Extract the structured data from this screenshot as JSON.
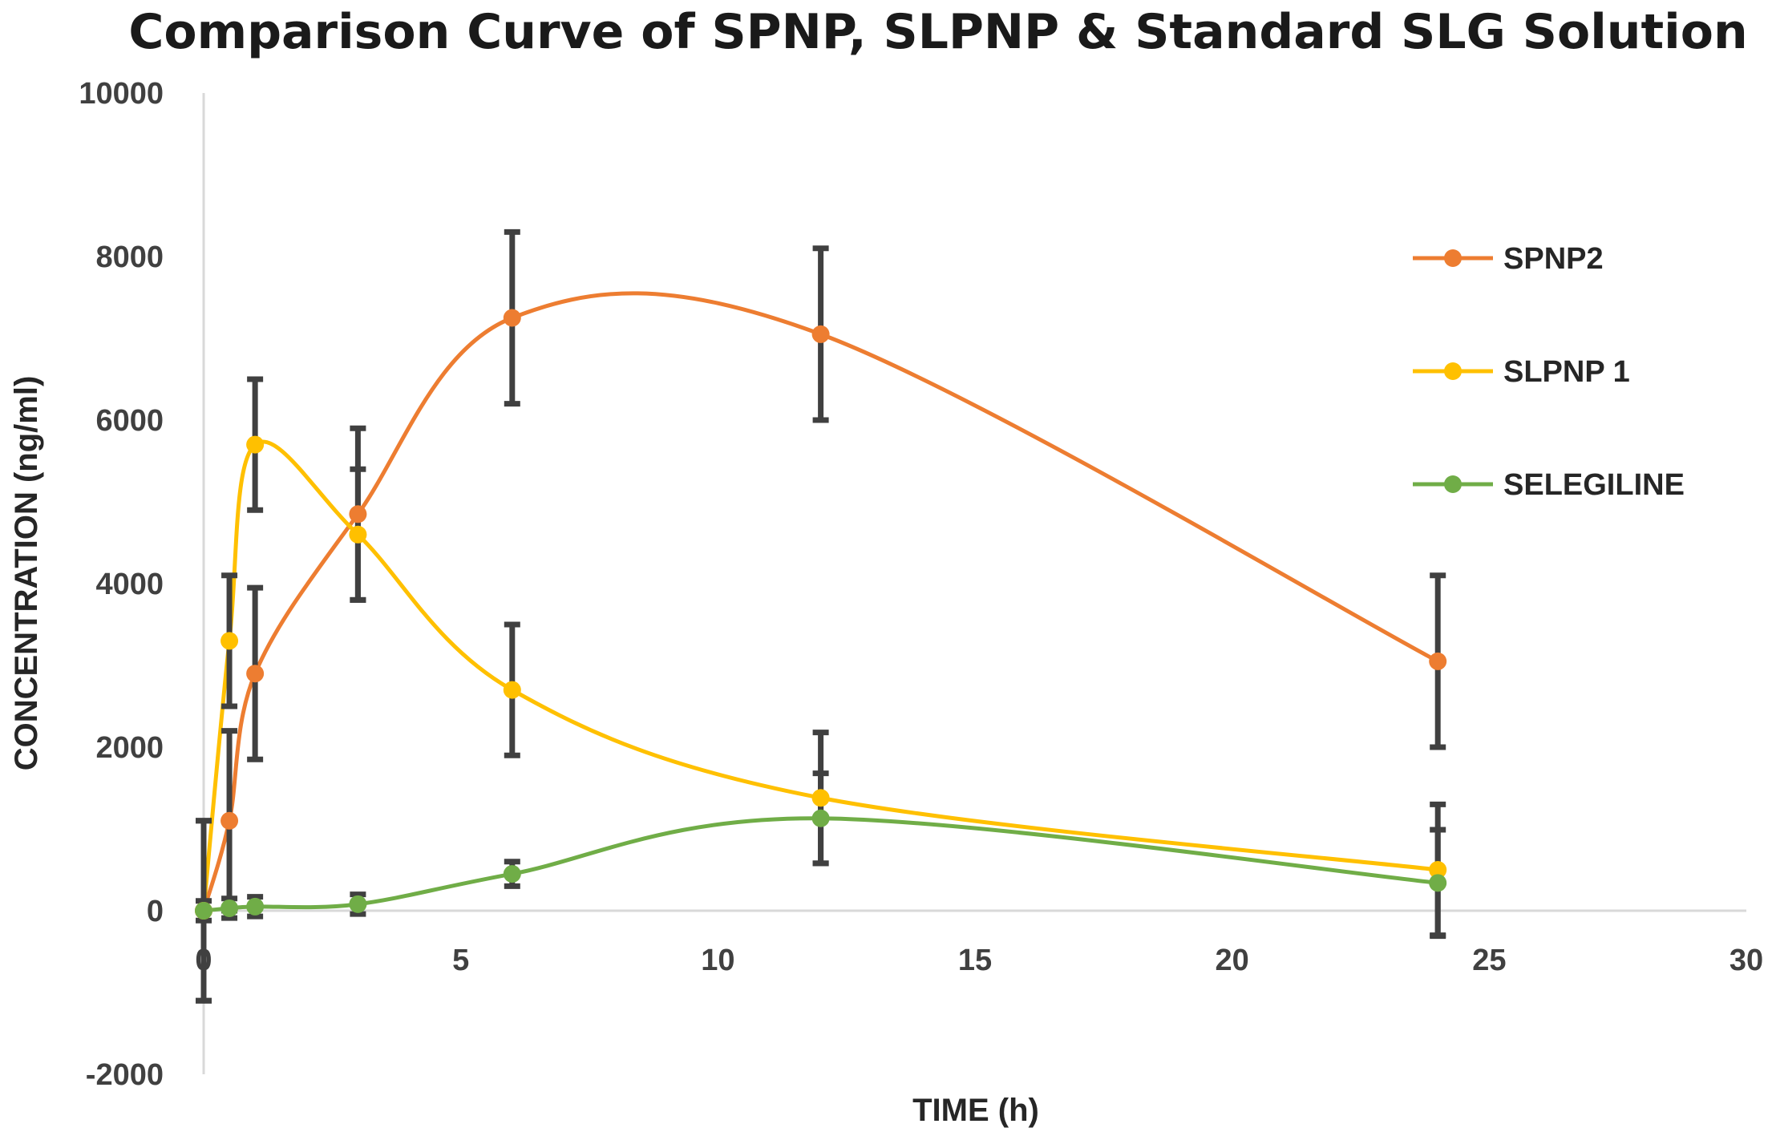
{
  "chart_data": {
    "type": "line",
    "title": "Comparison Curve of SPNP, SLPNP & Standard SLG Solution",
    "xlabel": "TIME  (h)",
    "ylabel": "CONCENTRATION  (ng/ml)",
    "xlim": [
      0,
      30
    ],
    "ylim": [
      -2000,
      10000
    ],
    "x_ticks": [
      0,
      5,
      10,
      15,
      20,
      25,
      30
    ],
    "x_tick_labels": [
      "0",
      "5",
      "10",
      "15",
      "20",
      "25",
      "30"
    ],
    "y_ticks": [
      -2000,
      0,
      2000,
      4000,
      6000,
      8000,
      10000
    ],
    "y_tick_labels": [
      "-2000",
      "0",
      "2000",
      "4000",
      "6000",
      "8000",
      "10000"
    ],
    "grid": false,
    "legend_position": "right",
    "series": [
      {
        "name": "SPNP2",
        "color": "#ED7D31",
        "x": [
          0,
          0.5,
          1,
          3,
          6,
          12,
          24
        ],
        "values": [
          0,
          1100,
          2900,
          4850,
          7250,
          7050,
          3050
        ],
        "error": [
          1100,
          1100,
          1050,
          1050,
          1050,
          1050,
          1050
        ]
      },
      {
        "name": "SLPNP 1",
        "color": "#FFC000",
        "x": [
          0,
          0.5,
          1,
          3,
          6,
          12,
          24
        ],
        "values": [
          0,
          3300,
          5700,
          4600,
          2700,
          1380,
          500
        ],
        "error": [
          1100,
          800,
          800,
          800,
          800,
          800,
          800
        ]
      },
      {
        "name": "SELEGILINE",
        "color": "#70AD47",
        "x": [
          0,
          0.5,
          1,
          3,
          6,
          12,
          24
        ],
        "values": [
          0,
          30,
          50,
          80,
          450,
          1130,
          340
        ],
        "error": [
          120,
          120,
          120,
          120,
          150,
          550,
          650
        ]
      }
    ]
  }
}
